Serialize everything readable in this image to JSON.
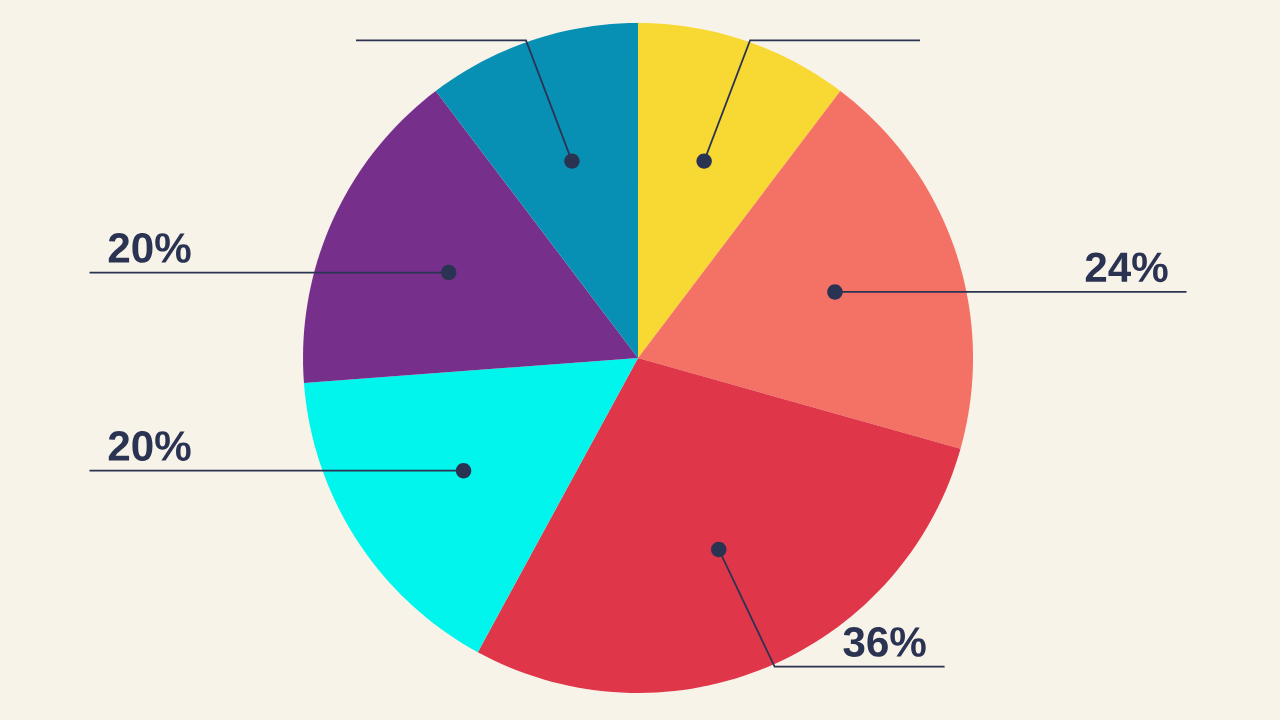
{
  "chart_data": {
    "type": "pie",
    "categories": [
      null,
      null,
      null,
      null,
      null,
      null
    ],
    "values": [
      13,
      24,
      36,
      20,
      20,
      13
    ],
    "value_labels": [
      null,
      "24%",
      "36%",
      "20%",
      "20%",
      null
    ],
    "colors": [
      "#f8d832",
      "#f47265",
      "#e0364a",
      "#00f5ec",
      "#76308c",
      "#0890b4"
    ]
  }
}
